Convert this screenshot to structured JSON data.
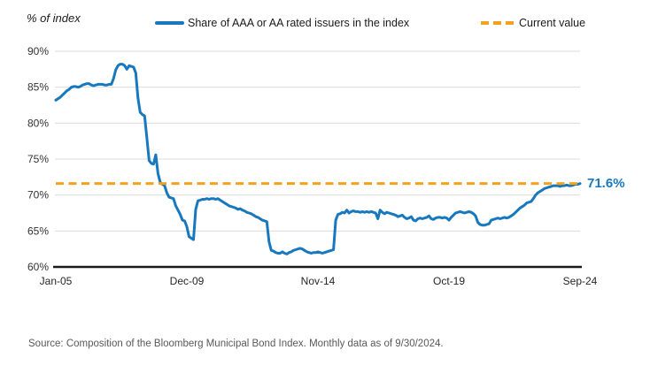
{
  "header": {
    "axis_note": "% of index"
  },
  "legend": {
    "series_label": "Share of AAA or AA rated issuers in the index",
    "current_label": "Current value"
  },
  "colors": {
    "series_blue": "#1878BE",
    "current_orange": "#F5A01E",
    "gridline": "#DBDBDB",
    "axis": "#1a1a1a",
    "tick_text": "#333333"
  },
  "annotation": {
    "current_value_label": "71.6%"
  },
  "source": "Source: Composition of the Bloomberg Municipal Bond Index. Monthly data as of 9/30/2024.",
  "chart_data": {
    "type": "line",
    "title": "",
    "ylabel": "% of index",
    "xlabel": "",
    "frequency": "monthly",
    "x_start": "2005-01",
    "x_end": "2024-09",
    "ylim": [
      60,
      90
    ],
    "grid": "horizontal",
    "legend_position": "top",
    "yticks": [
      {
        "value": 90,
        "label": "90%"
      },
      {
        "value": 85,
        "label": "85%"
      },
      {
        "value": 80,
        "label": "80%"
      },
      {
        "value": 75,
        "label": "75%"
      },
      {
        "value": 70,
        "label": "70%"
      },
      {
        "value": 65,
        "label": "65%"
      },
      {
        "value": 60,
        "label": "60%"
      }
    ],
    "xticks": [
      {
        "label": "Jan-05",
        "index": 0
      },
      {
        "label": "Dec-09",
        "index": 59
      },
      {
        "label": "Nov-14",
        "index": 118
      },
      {
        "label": "Oct-19",
        "index": 177
      },
      {
        "label": "Sep-24",
        "index": 236
      }
    ],
    "current_value": 71.6,
    "series": [
      {
        "name": "Share of AAA or AA rated issuers in the index",
        "color": "#1878BE",
        "values": [
          83.2,
          83.4,
          83.6,
          83.9,
          84.2,
          84.5,
          84.7,
          85.0,
          85.1,
          85.1,
          85.0,
          85.1,
          85.3,
          85.4,
          85.5,
          85.5,
          85.3,
          85.2,
          85.3,
          85.4,
          85.4,
          85.4,
          85.3,
          85.3,
          85.4,
          85.4,
          86.2,
          87.4,
          88.0,
          88.2,
          88.2,
          88.0,
          87.5,
          88.0,
          87.9,
          87.8,
          87.0,
          83.5,
          81.5,
          81.2,
          81.0,
          78.0,
          74.8,
          74.4,
          74.3,
          75.6,
          73.0,
          71.8,
          71.5,
          71.3,
          70.3,
          69.7,
          69.6,
          69.5,
          68.5,
          67.9,
          67.3,
          66.5,
          66.4,
          65.6,
          64.2,
          64.0,
          63.8,
          68.0,
          69.2,
          69.3,
          69.4,
          69.4,
          69.5,
          69.4,
          69.5,
          69.5,
          69.4,
          69.5,
          69.3,
          69.1,
          68.9,
          68.7,
          68.5,
          68.4,
          68.3,
          68.2,
          68.0,
          68.1,
          67.9,
          67.8,
          67.6,
          67.5,
          67.4,
          67.2,
          67.0,
          66.9,
          66.7,
          66.5,
          66.4,
          66.3,
          63.5,
          62.3,
          62.2,
          62.0,
          61.9,
          61.9,
          62.1,
          61.9,
          61.8,
          62.0,
          62.1,
          62.3,
          62.4,
          62.5,
          62.6,
          62.5,
          62.3,
          62.1,
          62.0,
          61.9,
          62.0,
          62.0,
          62.1,
          62.0,
          61.9,
          62.0,
          62.1,
          62.2,
          62.3,
          62.4,
          66.5,
          67.3,
          67.4,
          67.6,
          67.5,
          67.9,
          67.5,
          67.7,
          67.8,
          67.7,
          67.7,
          67.6,
          67.7,
          67.6,
          67.7,
          67.6,
          67.7,
          67.6,
          67.5,
          66.7,
          67.9,
          67.6,
          67.4,
          67.6,
          67.5,
          67.4,
          67.3,
          67.2,
          67.0,
          67.1,
          67.2,
          66.9,
          66.7,
          66.8,
          67.0,
          66.5,
          66.4,
          66.7,
          66.8,
          66.7,
          66.8,
          66.9,
          67.1,
          66.7,
          66.6,
          66.8,
          66.9,
          66.9,
          66.8,
          66.9,
          66.8,
          66.5,
          66.9,
          67.2,
          67.5,
          67.6,
          67.7,
          67.6,
          67.5,
          67.6,
          67.7,
          67.6,
          67.4,
          67.1,
          66.2,
          65.9,
          65.8,
          65.8,
          65.9,
          66.0,
          66.5,
          66.6,
          66.7,
          66.8,
          66.7,
          66.8,
          66.9,
          66.8,
          66.9,
          67.1,
          67.3,
          67.6,
          67.9,
          68.2,
          68.4,
          68.6,
          68.9,
          69.0,
          69.1,
          69.5,
          70.0,
          70.3,
          70.5,
          70.7,
          70.9,
          71.0,
          71.1,
          71.2,
          71.3,
          71.3,
          71.3,
          71.2,
          71.3,
          71.3,
          71.4,
          71.3,
          71.3,
          71.4,
          71.5,
          71.5,
          71.6
        ]
      }
    ]
  }
}
